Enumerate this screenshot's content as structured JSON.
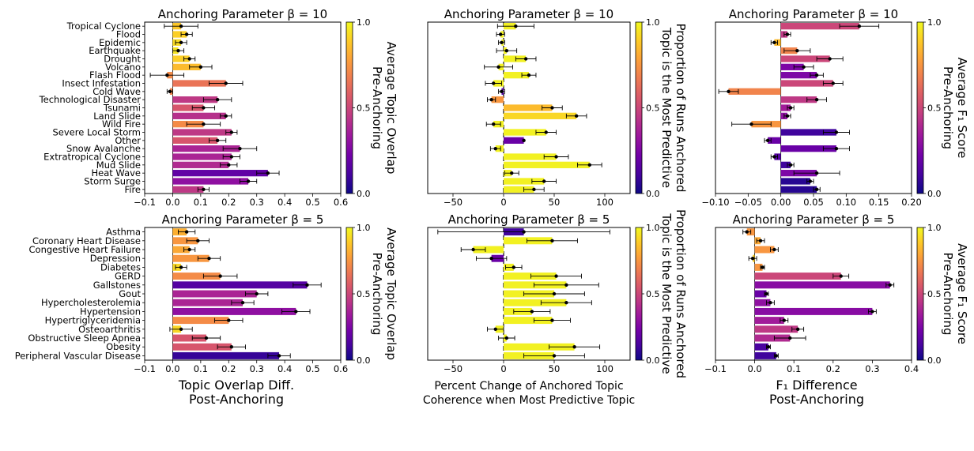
{
  "figure": {
    "bottom_labels": [
      [
        "Topic Overlap Diff.",
        "Post-Anchoring"
      ],
      [
        "Percent Change of Anchored Topic",
        "Coherence when Most Predictive Topic"
      ],
      [
        "F₁ Difference",
        "Post-Anchoring"
      ]
    ],
    "colorbar_labels": [
      [
        "Average Topic Overlap",
        "Pre-Anchoring"
      ],
      [
        "Proportion of Runs Anchored",
        "Topic is the Most Predictive"
      ],
      [
        "Average F₁ Score",
        "Pre-Anchoring"
      ]
    ],
    "colormap": [
      "#0d0887",
      "#46039f",
      "#7201a8",
      "#9c179e",
      "#bd3786",
      "#d8576b",
      "#ed7953",
      "#fb9f3a",
      "#fdca26",
      "#f0f921"
    ]
  },
  "chart_data": [
    {
      "type": "bar",
      "orientation": "horizontal",
      "title": "Anchoring Parameter β = 10",
      "xlim": [
        -0.1,
        0.6
      ],
      "xticks": [
        -0.1,
        0.0,
        0.1,
        0.2,
        0.3,
        0.4,
        0.5,
        0.6
      ],
      "xtick_labels": [
        "−0.1",
        "0.0",
        "0.1",
        "0.2",
        "0.3",
        "0.4",
        "0.5",
        "0.6"
      ],
      "categories": [
        "Tropical Cyclone",
        "Flood",
        "Epidemic",
        "Earthquake",
        "Drought",
        "Volcano",
        "Flash Flood",
        "Insect Infestation",
        "Cold Wave",
        "Technological Disaster",
        "Tsunami",
        "Land Slide",
        "Wild Fire",
        "Severe Local Storm",
        "Other",
        "Snow Avalanche",
        "Extratropical Cyclone",
        "Mud Slide",
        "Heat Wave",
        "Storm Surge",
        "Fire"
      ],
      "values": [
        0.03,
        0.05,
        0.03,
        0.02,
        0.06,
        0.1,
        -0.02,
        0.19,
        -0.01,
        0.16,
        0.11,
        0.19,
        0.11,
        0.21,
        0.16,
        0.24,
        0.21,
        0.2,
        0.34,
        0.27,
        0.11
      ],
      "errors": [
        0.06,
        0.02,
        0.02,
        0.02,
        0.02,
        0.04,
        0.06,
        0.06,
        0.01,
        0.05,
        0.04,
        0.02,
        0.06,
        0.02,
        0.03,
        0.06,
        0.03,
        0.03,
        0.04,
        0.03,
        0.02
      ],
      "color_values": [
        0.88,
        0.9,
        0.93,
        0.95,
        0.9,
        0.85,
        0.72,
        0.65,
        0.7,
        0.45,
        0.55,
        0.42,
        0.72,
        0.45,
        0.55,
        0.38,
        0.38,
        0.4,
        0.18,
        0.3,
        0.45
      ],
      "colorbar": {
        "range": [
          0.0,
          1.0
        ],
        "ticks": [
          "0.0",
          "0.5",
          "1.0"
        ]
      }
    },
    {
      "type": "bar",
      "orientation": "horizontal",
      "title": "Anchoring Parameter β = 10",
      "xlim": [
        -75,
        125
      ],
      "xticks": [
        -50,
        0,
        50,
        100
      ],
      "xtick_labels": [
        "−50",
        "0",
        "50",
        "100"
      ],
      "categories": [
        "Tropical Cyclone",
        "Flood",
        "Epidemic",
        "Earthquake",
        "Drought",
        "Volcano",
        "Flash Flood",
        "Insect Infestation",
        "Cold Wave",
        "Technological Disaster",
        "Tsunami",
        "Land Slide",
        "Wild Fire",
        "Severe Local Storm",
        "Other",
        "Snow Avalanche",
        "Extratropical Cyclone",
        "Mud Slide",
        "Heat Wave",
        "Storm Surge",
        "Fire"
      ],
      "values": [
        12,
        -3,
        -2,
        3,
        22,
        -5,
        25,
        -10,
        -2,
        -12,
        48,
        72,
        -10,
        42,
        20,
        -8,
        52,
        85,
        8,
        40,
        30
      ],
      "errors": [
        18,
        4,
        3,
        10,
        10,
        14,
        7,
        8,
        3,
        4,
        10,
        10,
        7,
        10,
        0,
        5,
        12,
        12,
        7,
        12,
        10
      ],
      "color_values": [
        0.98,
        0.98,
        0.98,
        0.98,
        0.98,
        0.98,
        0.98,
        0.98,
        0.15,
        0.75,
        0.85,
        0.92,
        0.98,
        0.98,
        0.2,
        0.98,
        0.98,
        0.98,
        0.98,
        0.98,
        0.98
      ],
      "colorbar": {
        "range": [
          0.0,
          1.0
        ],
        "ticks": [
          "0.0",
          "0.5",
          "1.0"
        ]
      },
      "reference_line": {
        "x": 0,
        "style": "dashed"
      }
    },
    {
      "type": "bar",
      "orientation": "horizontal",
      "title": "Anchoring Parameter β = 10",
      "xlim": [
        -0.1,
        0.2
      ],
      "xticks": [
        -0.1,
        -0.05,
        0.0,
        0.05,
        0.1,
        0.15,
        0.2
      ],
      "xtick_labels": [
        "−0.10",
        "−0.05",
        "0.00",
        "0.05",
        "0.10",
        "0.15",
        "0.20"
      ],
      "categories": [
        "Tropical Cyclone",
        "Flood",
        "Epidemic",
        "Earthquake",
        "Drought",
        "Volcano",
        "Flash Flood",
        "Insect Infestation",
        "Cold Wave",
        "Technological Disaster",
        "Tsunami",
        "Land Slide",
        "Wild Fire",
        "Severe Local Storm",
        "Other",
        "Snow Avalanche",
        "Extratropical Cyclone",
        "Mud Slide",
        "Heat Wave",
        "Storm Surge",
        "Fire"
      ],
      "values": [
        0.12,
        0.01,
        -0.01,
        0.025,
        0.075,
        0.035,
        0.055,
        0.08,
        -0.08,
        0.055,
        0.015,
        0.01,
        -0.045,
        0.085,
        -0.02,
        0.085,
        -0.01,
        0.015,
        0.055,
        0.045,
        0.055
      ],
      "errors": [
        0.03,
        0.005,
        0.005,
        0.02,
        0.02,
        0.015,
        0.01,
        0.015,
        0.015,
        0.015,
        0.005,
        0.005,
        0.03,
        0.02,
        0.005,
        0.02,
        0.005,
        0.005,
        0.035,
        0.005,
        0.005
      ],
      "color_values": [
        0.5,
        0.45,
        0.85,
        0.7,
        0.5,
        0.25,
        0.25,
        0.5,
        0.7,
        0.45,
        0.35,
        0.3,
        0.75,
        0.1,
        0.2,
        0.2,
        0.15,
        0.1,
        0.25,
        0.05,
        0.05
      ],
      "colorbar": {
        "range": [
          0.0,
          1.0
        ],
        "ticks": [
          "0.0",
          "0.5",
          "1.0"
        ]
      }
    },
    {
      "type": "bar",
      "orientation": "horizontal",
      "title": "Anchoring Parameter β = 5",
      "xlim": [
        -0.1,
        0.6
      ],
      "xticks": [
        -0.1,
        0.0,
        0.1,
        0.2,
        0.3,
        0.4,
        0.5,
        0.6
      ],
      "xtick_labels": [
        "−0.1",
        "0.0",
        "0.1",
        "0.2",
        "0.3",
        "0.4",
        "0.5",
        "0.6"
      ],
      "categories": [
        "Asthma",
        "Coronary Heart Disease",
        "Congestive Heart Failure",
        "Depression",
        "Diabetes",
        "GERD",
        "Gallstones",
        "Gout",
        "Hypercholesterolemia",
        "Hypertension",
        "Hypertriglyceridemia",
        "Osteoarthritis",
        "Obstructive Sleep Apnea",
        "Obesity",
        "Peripheral Vascular Disease"
      ],
      "values": [
        0.05,
        0.09,
        0.06,
        0.13,
        0.03,
        0.17,
        0.48,
        0.3,
        0.25,
        0.44,
        0.2,
        0.03,
        0.12,
        0.21,
        0.38
      ],
      "errors": [
        0.03,
        0.04,
        0.02,
        0.04,
        0.02,
        0.06,
        0.05,
        0.04,
        0.04,
        0.05,
        0.05,
        0.04,
        0.05,
        0.05,
        0.04
      ],
      "color_values": [
        0.82,
        0.75,
        0.8,
        0.75,
        0.92,
        0.72,
        0.15,
        0.38,
        0.38,
        0.3,
        0.72,
        0.92,
        0.55,
        0.55,
        0.08
      ],
      "colorbar": {
        "range": [
          0.0,
          1.0
        ],
        "ticks": [
          "0.0",
          "0.5",
          "1.0"
        ]
      }
    },
    {
      "type": "bar",
      "orientation": "horizontal",
      "title": "Anchoring Parameter β = 5",
      "xlim": [
        -75,
        125
      ],
      "xticks": [
        -50,
        0,
        50,
        100
      ],
      "xtick_labels": [
        "−50",
        "0",
        "50",
        "100"
      ],
      "categories": [
        "Asthma",
        "Coronary Heart Disease",
        "Congestive Heart Failure",
        "Depression",
        "Diabetes",
        "GERD",
        "Gallstones",
        "Gout",
        "Hypercholesterolemia",
        "Hypertension",
        "Hypertriglyceridemia",
        "Osteoarthritis",
        "Obstructive Sleep Apnea",
        "Obesity",
        "Peripheral Vascular Disease"
      ],
      "values": [
        20,
        48,
        -30,
        -12,
        10,
        52,
        62,
        50,
        62,
        28,
        48,
        -8,
        3,
        70,
        50
      ],
      "errors": [
        85,
        25,
        12,
        15,
        8,
        25,
        32,
        30,
        25,
        18,
        18,
        8,
        8,
        25,
        30
      ],
      "color_values": [
        0.1,
        0.98,
        0.98,
        0.2,
        0.98,
        0.98,
        0.98,
        0.98,
        0.98,
        0.98,
        0.98,
        0.98,
        0.98,
        0.98,
        0.98
      ],
      "colorbar": {
        "range": [
          0.0,
          1.0
        ],
        "ticks": [
          "0.0",
          "0.5",
          "1.0"
        ]
      },
      "reference_line": {
        "x": 0,
        "style": "dashed"
      }
    },
    {
      "type": "bar",
      "orientation": "horizontal",
      "title": "Anchoring Parameter β = 5",
      "xlim": [
        -0.1,
        0.4
      ],
      "xticks": [
        -0.1,
        0.0,
        0.1,
        0.2,
        0.3,
        0.4
      ],
      "xtick_labels": [
        "−0.1",
        "0.0",
        "0.1",
        "0.2",
        "0.3",
        "0.4"
      ],
      "categories": [
        "Asthma",
        "Coronary Heart Disease",
        "Congestive Heart Failure",
        "Depression",
        "Diabetes",
        "GERD",
        "Gallstones",
        "Gout",
        "Hypercholesterolemia",
        "Hypertension",
        "Hypertriglyceridemia",
        "Osteoarthritis",
        "Obstructive Sleep Apnea",
        "Obesity",
        "Peripheral Vascular Disease"
      ],
      "values": [
        -0.02,
        0.015,
        0.05,
        -0.005,
        0.02,
        0.22,
        0.345,
        0.03,
        0.04,
        0.3,
        0.075,
        0.11,
        0.09,
        0.035,
        0.055
      ],
      "errors": [
        0.01,
        0.01,
        0.01,
        0.01,
        0.005,
        0.02,
        0.01,
        0.005,
        0.01,
        0.01,
        0.01,
        0.015,
        0.04,
        0.005,
        0.005
      ],
      "color_values": [
        0.75,
        0.8,
        0.75,
        0.9,
        0.75,
        0.5,
        0.28,
        0.2,
        0.3,
        0.28,
        0.35,
        0.45,
        0.4,
        0.12,
        0.1
      ],
      "colorbar": {
        "range": [
          0.0,
          1.0
        ],
        "ticks": [
          "0.0",
          "0.5",
          "1.0"
        ]
      }
    }
  ]
}
